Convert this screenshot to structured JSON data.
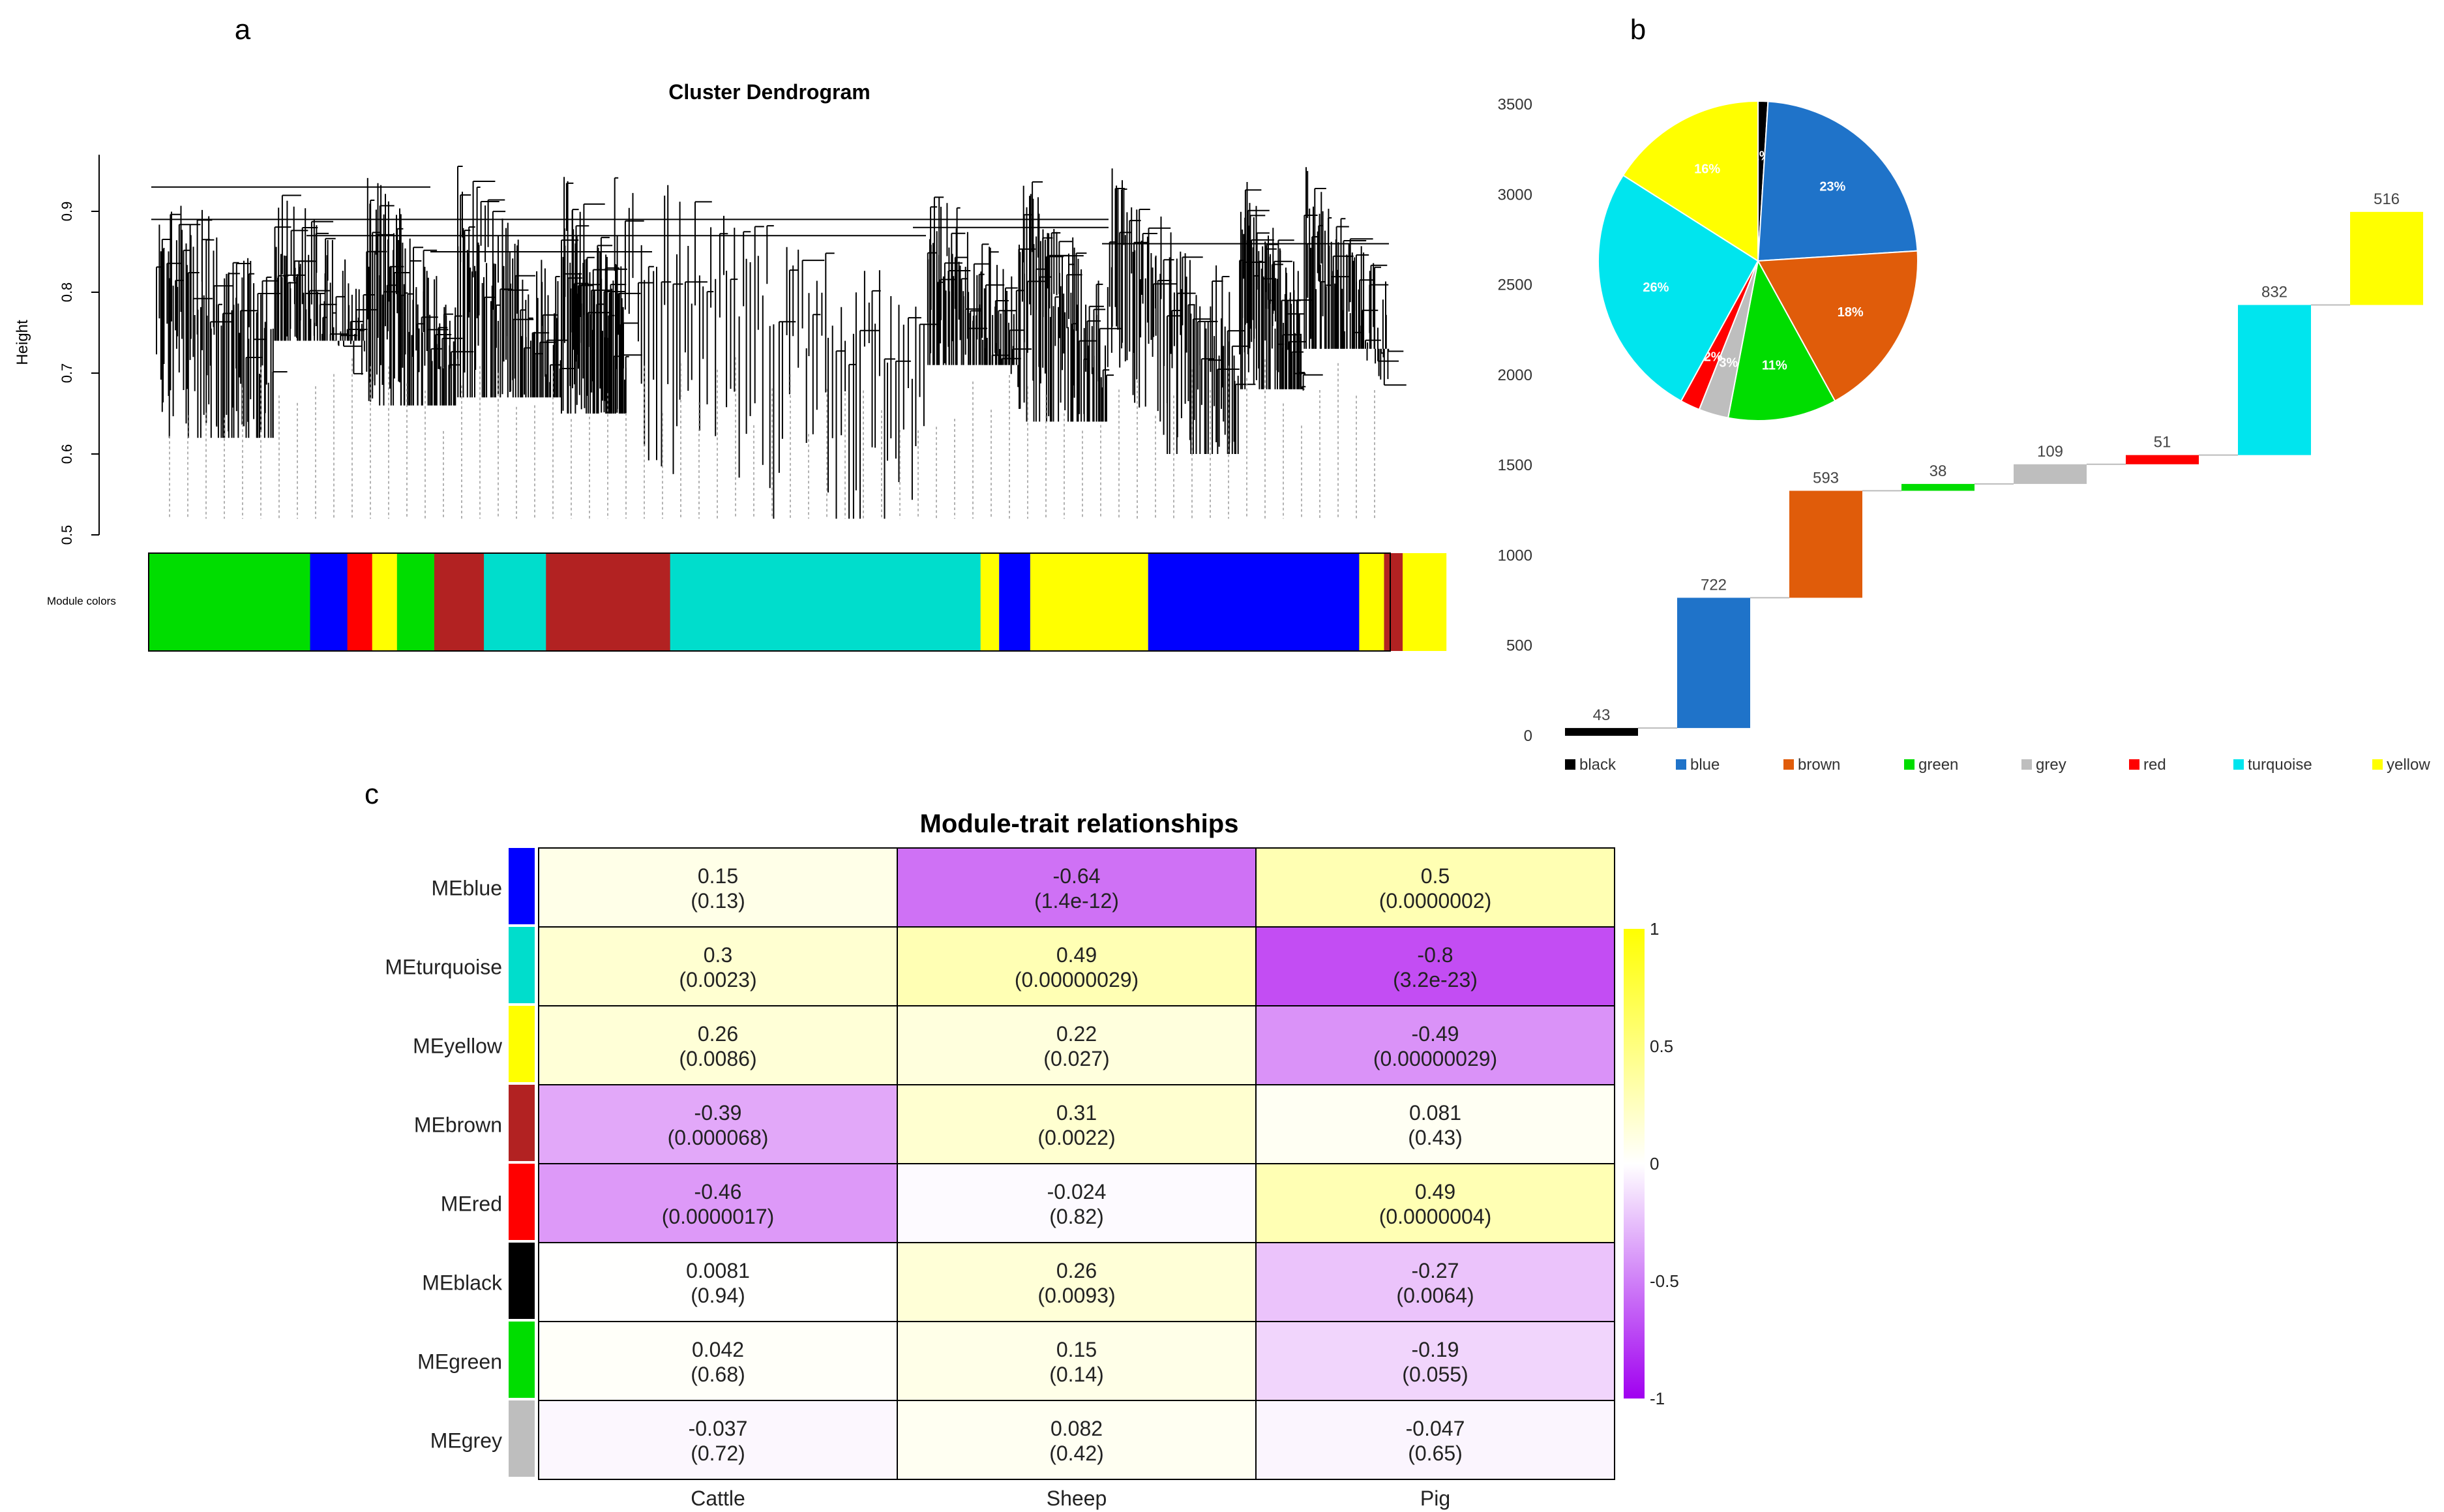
{
  "panel_labels": [
    "a",
    "b",
    "c"
  ],
  "colors": {
    "black": "#000000",
    "blue_module": "#0000ff",
    "blue_bar": "#1f73c9",
    "brown_bar": "#e05c0a",
    "brown_module": "#b22222",
    "green": "#00dd00",
    "grey": "#bebebe",
    "red": "#ff0000",
    "turquoise": "#00e5ee",
    "turquoise_module": "#00ddcc",
    "yellow": "#ffff00",
    "heat_pos": "#ffff66",
    "heat_zero": "#ffffff",
    "heat_neg": "#b421f0"
  },
  "chart_data": [
    {
      "type": "dendrogram",
      "title": "Cluster Dendrogram",
      "ylabel": "Height",
      "ylim": [
        0.5,
        0.97
      ],
      "yticks": [
        0.5,
        0.6,
        0.7,
        0.8,
        0.9
      ],
      "color_bar_label": "Module colors",
      "module_color_order": [
        {
          "color": "green",
          "share": 0.13
        },
        {
          "color": "blue",
          "share": 0.03
        },
        {
          "color": "red",
          "share": 0.02
        },
        {
          "color": "yellow",
          "share": 0.02
        },
        {
          "color": "green",
          "share": 0.03
        },
        {
          "color": "brown",
          "share": 0.04
        },
        {
          "color": "turquoise",
          "share": 0.05
        },
        {
          "color": "brown",
          "share": 0.1
        },
        {
          "color": "turquoise",
          "share": 0.25
        },
        {
          "color": "yellow",
          "share": 0.015
        },
        {
          "color": "blue",
          "share": 0.025
        },
        {
          "color": "yellow",
          "share": 0.095
        },
        {
          "color": "blue",
          "share": 0.17
        },
        {
          "color": "yellow",
          "share": 0.02
        },
        {
          "color": "brown",
          "share": 0.015
        },
        {
          "color": "yellow",
          "share": 0.035
        }
      ]
    },
    {
      "type": "bar",
      "subtype": "waterfall",
      "categories": [
        "black",
        "blue",
        "brown",
        "green",
        "grey",
        "red",
        "turquoise",
        "yellow"
      ],
      "values": [
        43,
        722,
        593,
        38,
        109,
        51,
        832,
        516
      ],
      "ylim": [
        0,
        3500
      ],
      "yticks": [
        0,
        500,
        1000,
        1500,
        2000,
        2500,
        3000,
        3500
      ],
      "legend": [
        "black",
        "blue",
        "brown",
        "green",
        "grey",
        "red",
        "turquoise",
        "yellow"
      ],
      "legend_position": "bottom"
    },
    {
      "type": "pie",
      "labels": [
        "black",
        "blue",
        "brown",
        "green",
        "grey",
        "red",
        "turquoise",
        "yellow"
      ],
      "values": [
        1,
        23,
        18,
        11,
        3,
        2,
        26,
        16
      ],
      "value_labels": [
        "1%",
        "23%",
        "18%",
        "11%",
        "3%",
        "2%",
        "26%",
        "16%"
      ]
    },
    {
      "type": "heatmap",
      "title": "Module-trait relationships",
      "rows": [
        "MEblue",
        "MEturquoise",
        "MEyellow",
        "MEbrown",
        "MEred",
        "MEblack",
        "MEgreen",
        "MEgrey"
      ],
      "row_colors": [
        "blue",
        "turquoise",
        "yellow",
        "brown",
        "red",
        "black",
        "green",
        "grey"
      ],
      "columns": [
        "Cattle",
        "Sheep",
        "Pig"
      ],
      "values": [
        [
          0.15,
          -0.64,
          0.5
        ],
        [
          0.3,
          0.49,
          -0.8
        ],
        [
          0.26,
          0.22,
          -0.49
        ],
        [
          -0.39,
          0.31,
          0.081
        ],
        [
          -0.46,
          -0.024,
          0.49
        ],
        [
          0.0081,
          0.26,
          -0.27
        ],
        [
          0.042,
          0.15,
          -0.19
        ],
        [
          -0.037,
          0.082,
          -0.047
        ]
      ],
      "value_labels": [
        [
          "0.15",
          "-0.64",
          "0.5"
        ],
        [
          "0.3",
          "0.49",
          "-0.8"
        ],
        [
          "0.26",
          "0.22",
          "-0.49"
        ],
        [
          "-0.39",
          "0.31",
          "0.081"
        ],
        [
          "-0.46",
          "-0.024",
          "0.49"
        ],
        [
          "0.0081",
          "0.26",
          "-0.27"
        ],
        [
          "0.042",
          "0.15",
          "-0.19"
        ],
        [
          "-0.037",
          "0.082",
          "-0.047"
        ]
      ],
      "pvalues": [
        [
          "(0.13)",
          "(1.4e-12)",
          "(0.0000002)"
        ],
        [
          "(0.0023)",
          "(0.00000029)",
          "(3.2e-23)"
        ],
        [
          "(0.0086)",
          "(0.027)",
          "(0.00000029)"
        ],
        [
          "(0.000068)",
          "(0.0022)",
          "(0.43)"
        ],
        [
          "(0.0000017)",
          "(0.82)",
          "(0.0000004)"
        ],
        [
          "(0.94)",
          "(0.0093)",
          "(0.0064)"
        ],
        [
          "(0.68)",
          "(0.14)",
          "(0.055)"
        ],
        [
          "(0.72)",
          "(0.42)",
          "(0.65)"
        ]
      ],
      "scale_range": [
        -1,
        1
      ],
      "scale_ticks": [
        "1",
        "0.5",
        "0",
        "-0.5",
        "-1"
      ]
    }
  ]
}
